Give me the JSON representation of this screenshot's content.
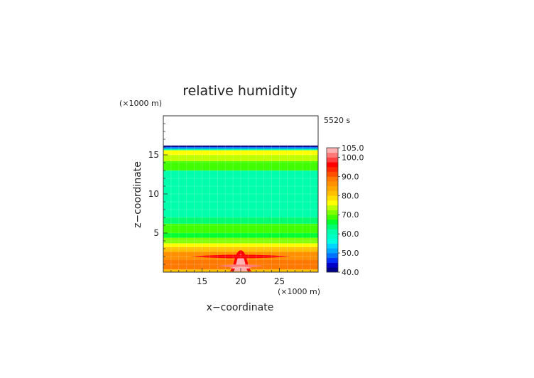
{
  "chart_data": {
    "type": "heatmap",
    "title": "relative humidity",
    "xlabel": "x−coordinate",
    "ylabel": "z−coordinate",
    "x_unit": "(×1000 m)",
    "y_unit": "(×1000 m)",
    "time_label": "5520 s",
    "xlim": [
      10,
      30
    ],
    "ylim": [
      0,
      20
    ],
    "x_ticks": [
      15,
      20,
      25
    ],
    "y_ticks": [
      5,
      10,
      15
    ],
    "x_tick_labels": [
      "15",
      "20",
      "25"
    ],
    "y_tick_labels": [
      "5",
      "10",
      "15"
    ],
    "grid": true,
    "colorbar": {
      "levels": [
        40,
        42.5,
        45,
        47.5,
        50,
        52.5,
        55,
        57.5,
        60,
        62.5,
        65,
        67.5,
        70,
        72.5,
        75,
        77.5,
        80,
        82.5,
        85,
        87.5,
        90,
        92.5,
        95,
        97.5,
        100,
        102.5,
        105
      ],
      "colors": [
        "#000088",
        "#0000c8",
        "#0030ff",
        "#0070ff",
        "#00a8ff",
        "#00d4ff",
        "#00ffe0",
        "#00ffc4",
        "#00ffaa",
        "#00ff70",
        "#00ff30",
        "#40ff00",
        "#80ff00",
        "#c0ff00",
        "#ffff00",
        "#ffe000",
        "#ffc000",
        "#ffa800",
        "#ff9000",
        "#ff7800",
        "#ff5000",
        "#ff2800",
        "#ff0000",
        "#ff4040",
        "#ff7878",
        "#ffb0b0"
      ],
      "tick_values": [
        40,
        50,
        60,
        70,
        80,
        90,
        100,
        105
      ],
      "tick_labels": [
        "40.0",
        "50.0",
        "60.0",
        "70.0",
        "80.0",
        "90.0",
        "100.0",
        "105.0"
      ]
    },
    "bands": [
      {
        "z0": 0.0,
        "z1": 0.35,
        "value": 80
      },
      {
        "z0": 0.35,
        "z1": 1.6,
        "value": 88
      },
      {
        "z0": 1.6,
        "z1": 2.6,
        "value": 85
      },
      {
        "z0": 2.6,
        "z1": 3.2,
        "value": 82
      },
      {
        "z0": 3.2,
        "z1": 3.7,
        "value": 76
      },
      {
        "z0": 3.7,
        "z1": 4.4,
        "value": 70
      },
      {
        "z0": 4.4,
        "z1": 5.0,
        "value": 65
      },
      {
        "z0": 5.0,
        "z1": 6.2,
        "value": 68
      },
      {
        "z0": 6.2,
        "z1": 7.0,
        "value": 64
      },
      {
        "z0": 7.0,
        "z1": 13.0,
        "value": 61
      },
      {
        "z0": 13.0,
        "z1": 14.2,
        "value": 69
      },
      {
        "z0": 14.2,
        "z1": 15.0,
        "value": 73
      },
      {
        "z0": 15.0,
        "z1": 15.6,
        "value": 76
      },
      {
        "z0": 15.6,
        "z1": 15.8,
        "value": 60
      },
      {
        "z0": 15.8,
        "z1": 16.0,
        "value": 48
      },
      {
        "z0": 16.0,
        "z1": 16.2,
        "value": 41
      }
    ],
    "features": [
      {
        "shape": "bump",
        "x": 20,
        "width": 3.0,
        "z0": 0.1,
        "z1": 2.8,
        "value": 96
      },
      {
        "shape": "bump",
        "x": 20,
        "width": 2.0,
        "z0": 0.1,
        "z1": 2.3,
        "value": 104
      },
      {
        "shape": "lens",
        "x0": 13.5,
        "x1": 26.5,
        "z": 2.0,
        "thickness": 0.45,
        "value": 96
      },
      {
        "shape": "lens",
        "x0": 17.0,
        "x1": 23.0,
        "z": 0.8,
        "thickness": 0.35,
        "value": 100
      },
      {
        "shape": "lens",
        "x0": 18.5,
        "x1": 21.5,
        "z": 0.55,
        "thickness": 0.3,
        "value": 104
      }
    ]
  }
}
